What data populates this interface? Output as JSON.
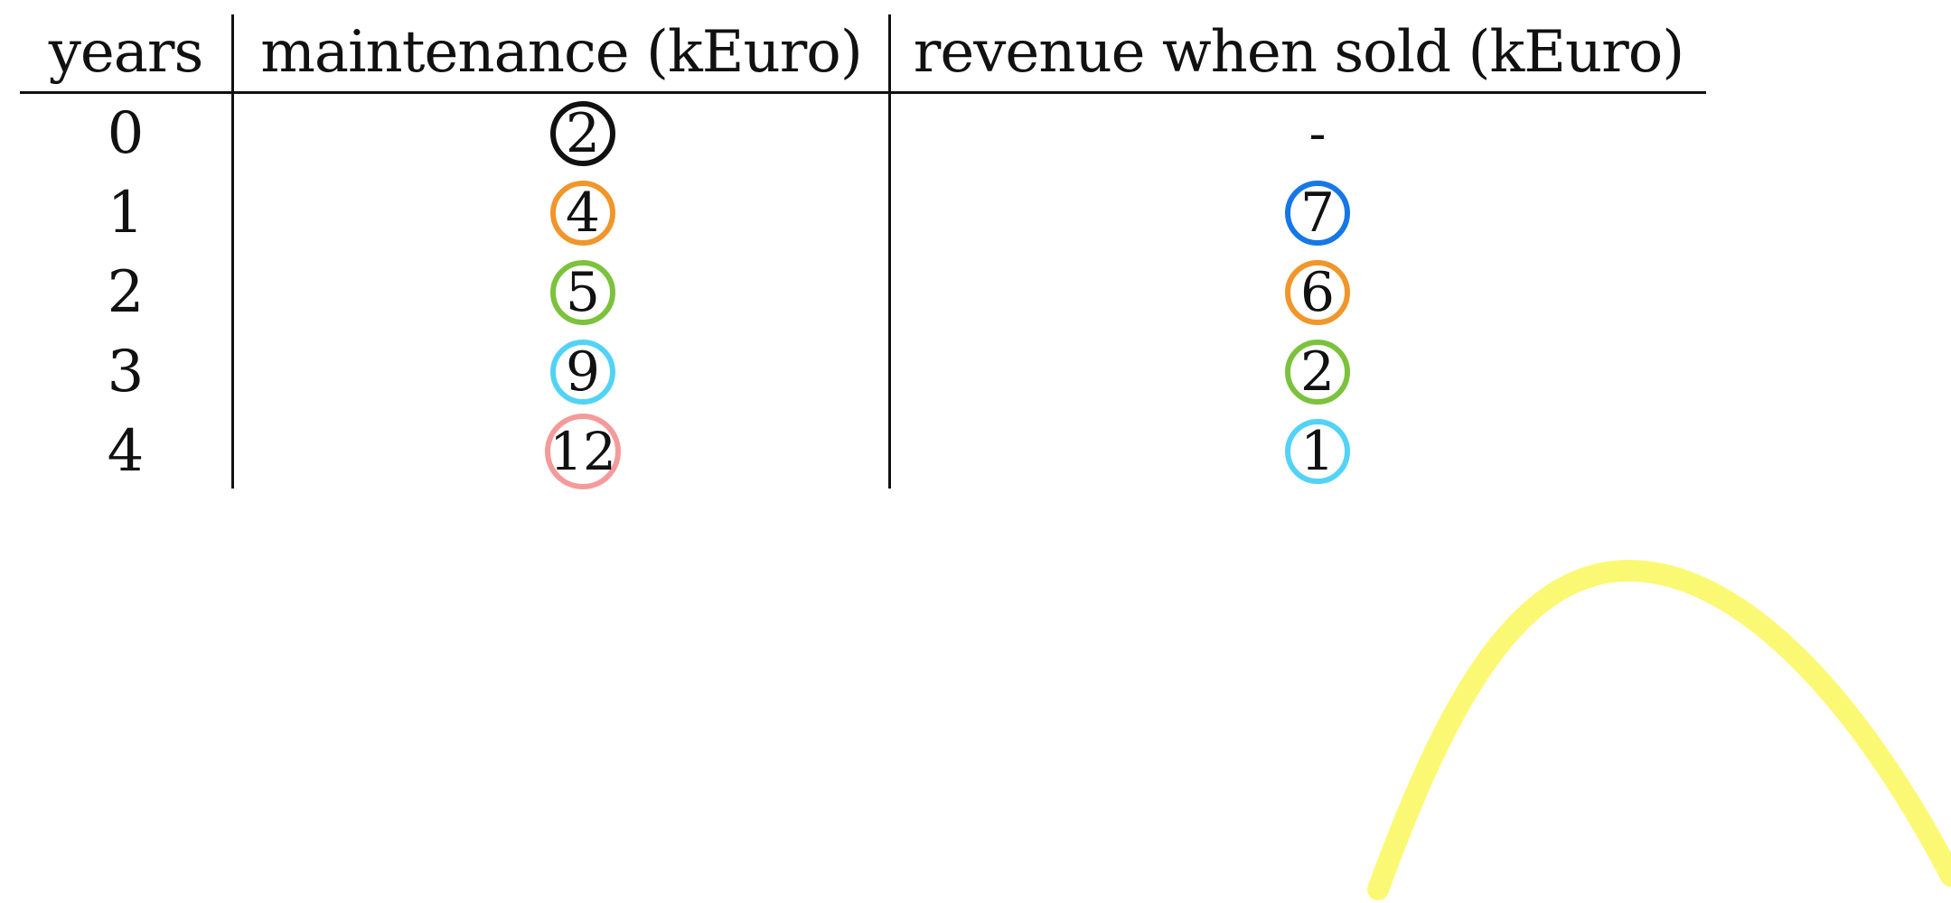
{
  "table": {
    "headers": {
      "years": "years",
      "maintenance": "maintenance (kEuro)",
      "revenue": "revenue when sold (kEuro)"
    },
    "rows": [
      {
        "year": "0",
        "maintenance": "2",
        "maintenance_color": "#111111",
        "revenue": "-",
        "revenue_color": ""
      },
      {
        "year": "1",
        "maintenance": "4",
        "maintenance_color": "#f0962a",
        "revenue": "7",
        "revenue_color": "#1677e6"
      },
      {
        "year": "2",
        "maintenance": "5",
        "maintenance_color": "#7cc23c",
        "revenue": "6",
        "revenue_color": "#f0962a"
      },
      {
        "year": "3",
        "maintenance": "9",
        "maintenance_color": "#52d3f5",
        "revenue": "2",
        "revenue_color": "#7cc23c"
      },
      {
        "year": "4",
        "maintenance": "12",
        "maintenance_color": "#f59a9a",
        "revenue": "1",
        "revenue_color": "#52d3f5"
      }
    ]
  },
  "annotation": {
    "curve_color": "#fbf974"
  }
}
